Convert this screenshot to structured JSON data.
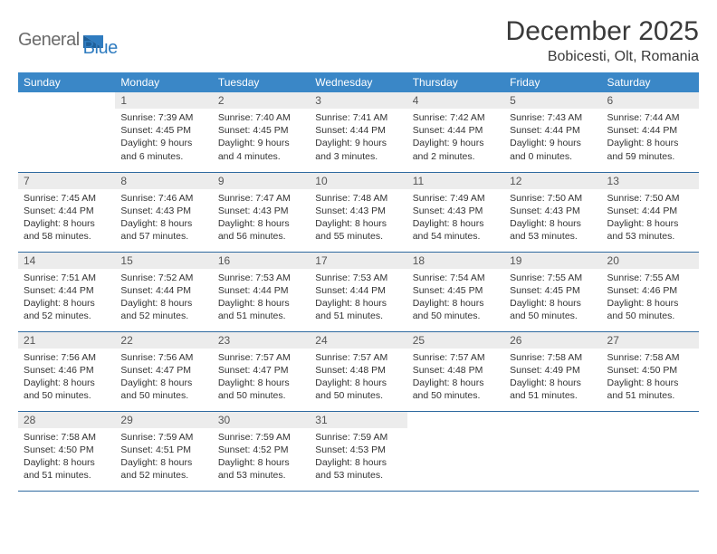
{
  "brand": {
    "part1": "General",
    "part2": "Blue"
  },
  "title": "December 2025",
  "location": "Bobicesti, Olt, Romania",
  "colors": {
    "header_bg": "#3a87c7",
    "header_text": "#ffffff",
    "daynum_bg": "#ececec",
    "row_divider": "#2f6aa0",
    "logo_gray": "#6b6b6b",
    "logo_blue": "#2f7cc0"
  },
  "weekdays": [
    "Sunday",
    "Monday",
    "Tuesday",
    "Wednesday",
    "Thursday",
    "Friday",
    "Saturday"
  ],
  "weeks": [
    [
      {
        "n": "",
        "sr": "",
        "ss": "",
        "dl": ""
      },
      {
        "n": "1",
        "sr": "Sunrise: 7:39 AM",
        "ss": "Sunset: 4:45 PM",
        "dl": "Daylight: 9 hours and 6 minutes."
      },
      {
        "n": "2",
        "sr": "Sunrise: 7:40 AM",
        "ss": "Sunset: 4:45 PM",
        "dl": "Daylight: 9 hours and 4 minutes."
      },
      {
        "n": "3",
        "sr": "Sunrise: 7:41 AM",
        "ss": "Sunset: 4:44 PM",
        "dl": "Daylight: 9 hours and 3 minutes."
      },
      {
        "n": "4",
        "sr": "Sunrise: 7:42 AM",
        "ss": "Sunset: 4:44 PM",
        "dl": "Daylight: 9 hours and 2 minutes."
      },
      {
        "n": "5",
        "sr": "Sunrise: 7:43 AM",
        "ss": "Sunset: 4:44 PM",
        "dl": "Daylight: 9 hours and 0 minutes."
      },
      {
        "n": "6",
        "sr": "Sunrise: 7:44 AM",
        "ss": "Sunset: 4:44 PM",
        "dl": "Daylight: 8 hours and 59 minutes."
      }
    ],
    [
      {
        "n": "7",
        "sr": "Sunrise: 7:45 AM",
        "ss": "Sunset: 4:44 PM",
        "dl": "Daylight: 8 hours and 58 minutes."
      },
      {
        "n": "8",
        "sr": "Sunrise: 7:46 AM",
        "ss": "Sunset: 4:43 PM",
        "dl": "Daylight: 8 hours and 57 minutes."
      },
      {
        "n": "9",
        "sr": "Sunrise: 7:47 AM",
        "ss": "Sunset: 4:43 PM",
        "dl": "Daylight: 8 hours and 56 minutes."
      },
      {
        "n": "10",
        "sr": "Sunrise: 7:48 AM",
        "ss": "Sunset: 4:43 PM",
        "dl": "Daylight: 8 hours and 55 minutes."
      },
      {
        "n": "11",
        "sr": "Sunrise: 7:49 AM",
        "ss": "Sunset: 4:43 PM",
        "dl": "Daylight: 8 hours and 54 minutes."
      },
      {
        "n": "12",
        "sr": "Sunrise: 7:50 AM",
        "ss": "Sunset: 4:43 PM",
        "dl": "Daylight: 8 hours and 53 minutes."
      },
      {
        "n": "13",
        "sr": "Sunrise: 7:50 AM",
        "ss": "Sunset: 4:44 PM",
        "dl": "Daylight: 8 hours and 53 minutes."
      }
    ],
    [
      {
        "n": "14",
        "sr": "Sunrise: 7:51 AM",
        "ss": "Sunset: 4:44 PM",
        "dl": "Daylight: 8 hours and 52 minutes."
      },
      {
        "n": "15",
        "sr": "Sunrise: 7:52 AM",
        "ss": "Sunset: 4:44 PM",
        "dl": "Daylight: 8 hours and 52 minutes."
      },
      {
        "n": "16",
        "sr": "Sunrise: 7:53 AM",
        "ss": "Sunset: 4:44 PM",
        "dl": "Daylight: 8 hours and 51 minutes."
      },
      {
        "n": "17",
        "sr": "Sunrise: 7:53 AM",
        "ss": "Sunset: 4:44 PM",
        "dl": "Daylight: 8 hours and 51 minutes."
      },
      {
        "n": "18",
        "sr": "Sunrise: 7:54 AM",
        "ss": "Sunset: 4:45 PM",
        "dl": "Daylight: 8 hours and 50 minutes."
      },
      {
        "n": "19",
        "sr": "Sunrise: 7:55 AM",
        "ss": "Sunset: 4:45 PM",
        "dl": "Daylight: 8 hours and 50 minutes."
      },
      {
        "n": "20",
        "sr": "Sunrise: 7:55 AM",
        "ss": "Sunset: 4:46 PM",
        "dl": "Daylight: 8 hours and 50 minutes."
      }
    ],
    [
      {
        "n": "21",
        "sr": "Sunrise: 7:56 AM",
        "ss": "Sunset: 4:46 PM",
        "dl": "Daylight: 8 hours and 50 minutes."
      },
      {
        "n": "22",
        "sr": "Sunrise: 7:56 AM",
        "ss": "Sunset: 4:47 PM",
        "dl": "Daylight: 8 hours and 50 minutes."
      },
      {
        "n": "23",
        "sr": "Sunrise: 7:57 AM",
        "ss": "Sunset: 4:47 PM",
        "dl": "Daylight: 8 hours and 50 minutes."
      },
      {
        "n": "24",
        "sr": "Sunrise: 7:57 AM",
        "ss": "Sunset: 4:48 PM",
        "dl": "Daylight: 8 hours and 50 minutes."
      },
      {
        "n": "25",
        "sr": "Sunrise: 7:57 AM",
        "ss": "Sunset: 4:48 PM",
        "dl": "Daylight: 8 hours and 50 minutes."
      },
      {
        "n": "26",
        "sr": "Sunrise: 7:58 AM",
        "ss": "Sunset: 4:49 PM",
        "dl": "Daylight: 8 hours and 51 minutes."
      },
      {
        "n": "27",
        "sr": "Sunrise: 7:58 AM",
        "ss": "Sunset: 4:50 PM",
        "dl": "Daylight: 8 hours and 51 minutes."
      }
    ],
    [
      {
        "n": "28",
        "sr": "Sunrise: 7:58 AM",
        "ss": "Sunset: 4:50 PM",
        "dl": "Daylight: 8 hours and 51 minutes."
      },
      {
        "n": "29",
        "sr": "Sunrise: 7:59 AM",
        "ss": "Sunset: 4:51 PM",
        "dl": "Daylight: 8 hours and 52 minutes."
      },
      {
        "n": "30",
        "sr": "Sunrise: 7:59 AM",
        "ss": "Sunset: 4:52 PM",
        "dl": "Daylight: 8 hours and 53 minutes."
      },
      {
        "n": "31",
        "sr": "Sunrise: 7:59 AM",
        "ss": "Sunset: 4:53 PM",
        "dl": "Daylight: 8 hours and 53 minutes."
      },
      {
        "n": "",
        "sr": "",
        "ss": "",
        "dl": ""
      },
      {
        "n": "",
        "sr": "",
        "ss": "",
        "dl": ""
      },
      {
        "n": "",
        "sr": "",
        "ss": "",
        "dl": ""
      }
    ]
  ]
}
